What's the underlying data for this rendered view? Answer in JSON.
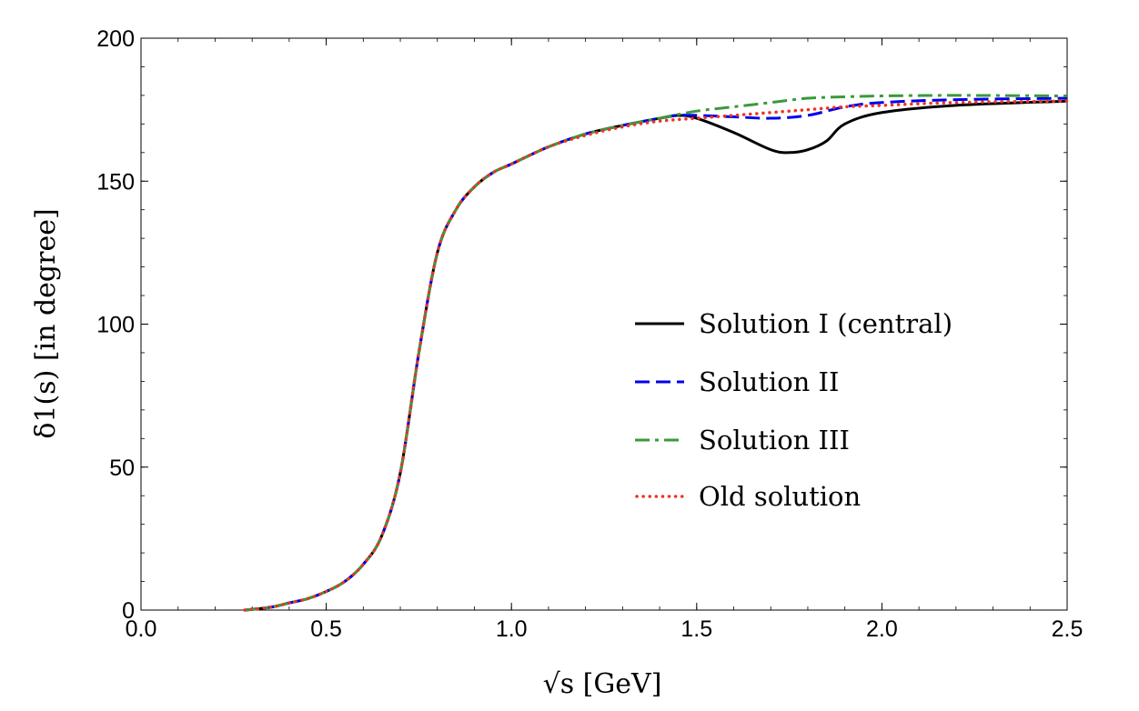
{
  "chart_data": {
    "type": "line",
    "xlabel": "√s   [GeV]",
    "ylabel": "δ1(s)  [in degree]",
    "xlim": [
      0.0,
      2.5
    ],
    "ylim": [
      0,
      200
    ],
    "x_ticks": [
      0.0,
      0.5,
      1.0,
      1.5,
      2.0,
      2.5
    ],
    "x_tick_labels": [
      "0.0",
      "0.5",
      "1.0",
      "1.5",
      "2.0",
      "2.5"
    ],
    "y_ticks": [
      0,
      50,
      100,
      150,
      200
    ],
    "y_tick_labels": [
      "0",
      "50",
      "100",
      "150",
      "200"
    ],
    "grid": false,
    "legend_position": "center-right",
    "series": [
      {
        "name": "Solution I (central)",
        "color": "#000000",
        "style": "solid",
        "x": [
          0.28,
          0.35,
          0.4,
          0.45,
          0.5,
          0.55,
          0.6,
          0.65,
          0.7,
          0.75,
          0.8,
          0.85,
          0.9,
          0.95,
          1.0,
          1.1,
          1.2,
          1.3,
          1.4,
          1.45,
          1.5,
          1.6,
          1.7,
          1.75,
          1.8,
          1.85,
          1.9,
          2.0,
          2.2,
          2.5
        ],
        "y": [
          0,
          1,
          2.5,
          4,
          6.5,
          10,
          16,
          26,
          48,
          90,
          125,
          140,
          148,
          153,
          156,
          162,
          166.5,
          169.5,
          172,
          173,
          172,
          167,
          161,
          160,
          161,
          164,
          170,
          174,
          176.5,
          178
        ]
      },
      {
        "name": "Solution II",
        "color": "#0000ee",
        "style": "dashed",
        "x": [
          0.28,
          0.35,
          0.4,
          0.45,
          0.5,
          0.55,
          0.6,
          0.65,
          0.7,
          0.75,
          0.8,
          0.85,
          0.9,
          0.95,
          1.0,
          1.1,
          1.2,
          1.3,
          1.4,
          1.45,
          1.5,
          1.6,
          1.7,
          1.8,
          1.9,
          2.0,
          2.2,
          2.5
        ],
        "y": [
          0,
          1,
          2.5,
          4,
          6.5,
          10,
          16,
          26,
          48,
          90,
          125,
          140,
          148,
          153,
          156,
          162,
          166.5,
          169.5,
          172,
          173,
          173,
          172.5,
          172,
          173,
          176,
          177.5,
          178.5,
          179
        ]
      },
      {
        "name": "Solution III",
        "color": "#3a9a3a",
        "style": "dashdot",
        "x": [
          0.28,
          0.35,
          0.4,
          0.45,
          0.5,
          0.55,
          0.6,
          0.65,
          0.7,
          0.75,
          0.8,
          0.85,
          0.9,
          0.95,
          1.0,
          1.1,
          1.2,
          1.3,
          1.4,
          1.5,
          1.6,
          1.7,
          1.8,
          1.9,
          2.0,
          2.2,
          2.5
        ],
        "y": [
          0,
          1,
          2.5,
          4,
          6.5,
          10,
          16,
          26,
          48,
          90,
          125,
          140,
          148,
          153,
          156,
          162,
          166.5,
          169.5,
          172,
          174.5,
          176,
          177.5,
          179,
          179.5,
          179.8,
          180,
          179.8
        ]
      },
      {
        "name": "Old solution",
        "color": "#ee3322",
        "style": "dotted",
        "x": [
          0.28,
          0.35,
          0.4,
          0.45,
          0.5,
          0.55,
          0.6,
          0.65,
          0.7,
          0.75,
          0.8,
          0.85,
          0.9,
          0.95,
          1.0,
          1.1,
          1.2,
          1.3,
          1.4,
          1.5,
          1.6,
          1.7,
          1.8,
          1.9,
          2.0,
          2.2,
          2.5
        ],
        "y": [
          0,
          1,
          2.5,
          4,
          6.5,
          10,
          16,
          26,
          48,
          90,
          125,
          140,
          148,
          153,
          156,
          162,
          166,
          169,
          171,
          172,
          173,
          174,
          175,
          176,
          176.5,
          177.5,
          178
        ]
      }
    ]
  }
}
